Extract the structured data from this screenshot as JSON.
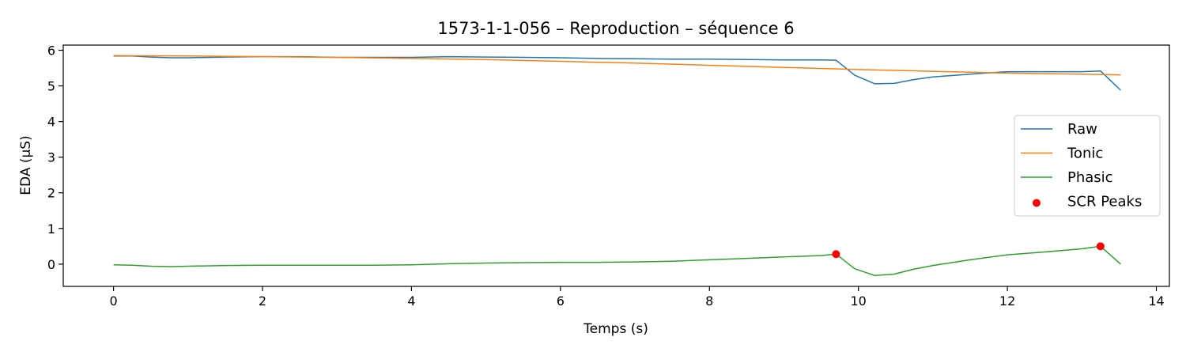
{
  "chart_data": {
    "type": "line",
    "title": "1573-1-1-056 – Reproduction – séquence 6",
    "xlabel": "Temps (s)",
    "ylabel": "EDA (µS)",
    "xlim": [
      -0.675,
      14.175
    ],
    "ylim": [
      -0.625,
      6.145
    ],
    "xticks": [
      0,
      2,
      4,
      6,
      8,
      10,
      12,
      14
    ],
    "yticks": [
      0,
      1,
      2,
      3,
      4,
      5,
      6
    ],
    "grid": false,
    "legend_position": "center-right",
    "series": [
      {
        "name": "Raw",
        "color": "#1f77b4",
        "x": [
          0,
          0.25,
          0.5,
          0.77,
          1.0,
          1.5,
          2.0,
          2.5,
          3.0,
          3.5,
          4.0,
          4.5,
          5.0,
          5.5,
          6.0,
          6.5,
          7.0,
          7.5,
          8.0,
          8.5,
          9.0,
          9.5,
          9.7,
          9.95,
          10.22,
          10.48,
          10.75,
          11.0,
          11.5,
          12.0,
          12.5,
          13.0,
          13.25,
          13.52
        ],
        "y": [
          5.84,
          5.84,
          5.81,
          5.79,
          5.79,
          5.81,
          5.82,
          5.82,
          5.8,
          5.8,
          5.8,
          5.82,
          5.81,
          5.8,
          5.79,
          5.77,
          5.76,
          5.75,
          5.75,
          5.74,
          5.73,
          5.73,
          5.72,
          5.3,
          5.06,
          5.07,
          5.18,
          5.25,
          5.33,
          5.4,
          5.4,
          5.4,
          5.42,
          4.88
        ]
      },
      {
        "name": "Tonic",
        "color": "#ff7f0e",
        "x": [
          0,
          1,
          2,
          3,
          4,
          5,
          6,
          7,
          8,
          9,
          10,
          11,
          12,
          13,
          13.52
        ],
        "y": [
          5.85,
          5.84,
          5.82,
          5.8,
          5.77,
          5.74,
          5.69,
          5.64,
          5.58,
          5.52,
          5.46,
          5.41,
          5.36,
          5.33,
          5.31
        ]
      },
      {
        "name": "Phasic",
        "color": "#2ca02c",
        "x": [
          0,
          0.25,
          0.5,
          0.77,
          1.0,
          1.5,
          2.0,
          2.5,
          3.0,
          3.5,
          4.0,
          4.5,
          5.0,
          5.5,
          6.0,
          6.5,
          7.0,
          7.5,
          8.0,
          8.5,
          9.0,
          9.5,
          9.7,
          9.95,
          10.22,
          10.48,
          10.75,
          11.0,
          11.5,
          12.0,
          12.5,
          13.0,
          13.25,
          13.52
        ],
        "y": [
          -0.02,
          -0.03,
          -0.06,
          -0.07,
          -0.06,
          -0.04,
          -0.03,
          -0.03,
          -0.03,
          -0.03,
          -0.02,
          0.01,
          0.03,
          0.04,
          0.05,
          0.05,
          0.06,
          0.08,
          0.12,
          0.16,
          0.2,
          0.24,
          0.28,
          -0.13,
          -0.32,
          -0.28,
          -0.14,
          -0.04,
          0.12,
          0.26,
          0.34,
          0.43,
          0.5,
          0.0
        ]
      }
    ],
    "peaks": {
      "name": "SCR Peaks",
      "color": "#ff0000",
      "x": [
        9.7,
        13.25
      ],
      "y": [
        0.28,
        0.5
      ]
    }
  }
}
